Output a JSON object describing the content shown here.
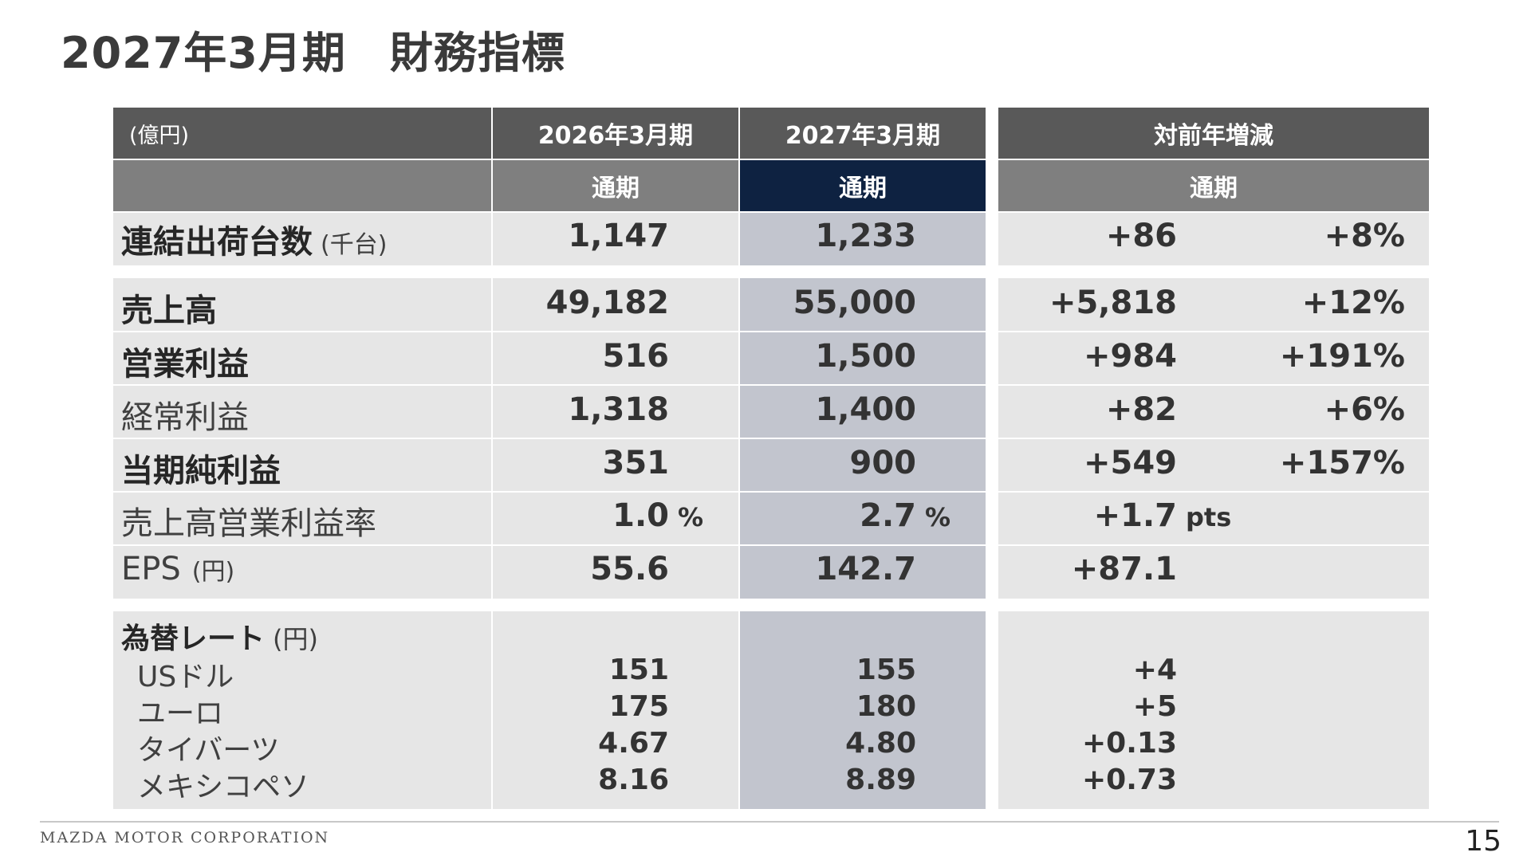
{
  "title": "2027年3月期　財務指標",
  "table": {
    "unit_label": "(億円)",
    "col_fy2026": "2026年3月期",
    "col_fy2027": "2027年3月期",
    "col_change": "対前年増減",
    "sub_fy2026": "通期",
    "sub_fy2027": "通期",
    "sub_change": "通期",
    "rows": [
      {
        "label": "連結出荷台数",
        "unit": "(千台)",
        "fy2026": "1,147",
        "fy2027": "1,233",
        "diff": "+86",
        "pct": "+8%"
      },
      {
        "label": "売上高",
        "unit": "",
        "fy2026": "49,182",
        "fy2027": "55,000",
        "diff": "+5,818",
        "pct": "+12%"
      },
      {
        "label": "営業利益",
        "unit": "",
        "fy2026": "516",
        "fy2027": "1,500",
        "diff": "+984",
        "pct": "+191%"
      },
      {
        "label": "経常利益",
        "unit": "",
        "fy2026": "1,318",
        "fy2027": "1,400",
        "diff": "+82",
        "pct": "+6%"
      },
      {
        "label": "当期純利益",
        "unit": "",
        "fy2026": "351",
        "fy2027": "900",
        "diff": "+549",
        "pct": "+157%"
      },
      {
        "label": "売上高営業利益率",
        "unit": "",
        "fy2026": "1.0",
        "fy2026_unit": "%",
        "fy2027": "2.7",
        "fy2027_unit": "%",
        "diff": "+1.7",
        "diff_unit": "pts"
      },
      {
        "label": "EPS",
        "unit": "(円)",
        "fy2026": "55.6",
        "fy2027": "142.7",
        "diff": "+87.1"
      }
    ],
    "fx": {
      "label": "為替レート",
      "unit": "(円)",
      "items": [
        {
          "name": "USドル",
          "fy2026": "151",
          "fy2027": "155",
          "diff": "+4"
        },
        {
          "name": "ユーロ",
          "fy2026": "175",
          "fy2027": "180",
          "diff": "+5"
        },
        {
          "name": "タイバーツ",
          "fy2026": "4.67",
          "fy2027": "4.80",
          "diff": "+0.13"
        },
        {
          "name": "メキシコペソ",
          "fy2026": "8.16",
          "fy2027": "8.89",
          "diff": "+0.73"
        }
      ]
    }
  },
  "footer": {
    "company": "MAZDA MOTOR CORPORATION",
    "page_number": "15"
  }
}
